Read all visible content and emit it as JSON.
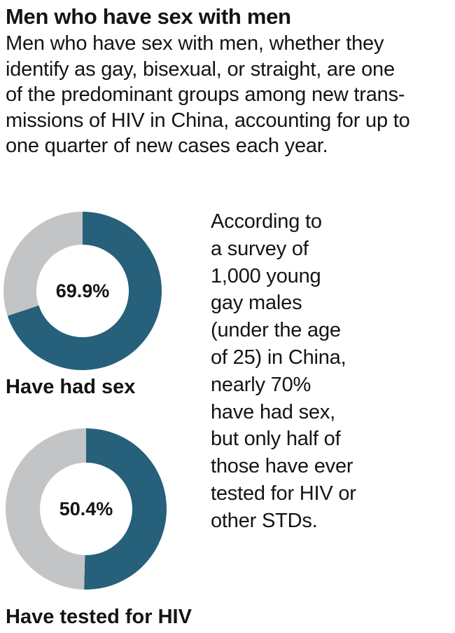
{
  "title": "Men who have sex with men",
  "intro_lines": [
    "Men who have sex with men, whether they",
    "identify as gay, bisexual, or straight, are one",
    "of the predominant groups among new trans-",
    "missions of HIV in China, accounting for up to",
    "one quarter of new cases each year."
  ],
  "colors": {
    "primary": "#26607a",
    "remainder": "#c2c4c6",
    "text": "#141414",
    "background": "#ffffff"
  },
  "chart_data": [
    {
      "type": "pie",
      "variant": "donut",
      "title": "Have had sex",
      "value_label": "69.9%",
      "slices": [
        {
          "label": "Have had sex",
          "value": 69.9,
          "color": "#26607a"
        },
        {
          "label": "",
          "value": 30.1,
          "color": "#c2c4c6"
        }
      ]
    },
    {
      "type": "pie",
      "variant": "donut",
      "title": "Have tested for HIV",
      "value_label": "50.4%",
      "slices": [
        {
          "label": "Have tested for HIV",
          "value": 50.4,
          "color": "#26607a"
        },
        {
          "label": "",
          "value": 49.6,
          "color": "#c2c4c6"
        }
      ]
    }
  ],
  "side_text_lines": [
    "According to",
    "a survey of",
    "1,000 young",
    "gay males",
    "(under the age",
    "of 25) in China,",
    "nearly 70%",
    "have had sex,",
    "but only half of",
    "those have ever",
    "tested for HIV or",
    "other STDs."
  ]
}
